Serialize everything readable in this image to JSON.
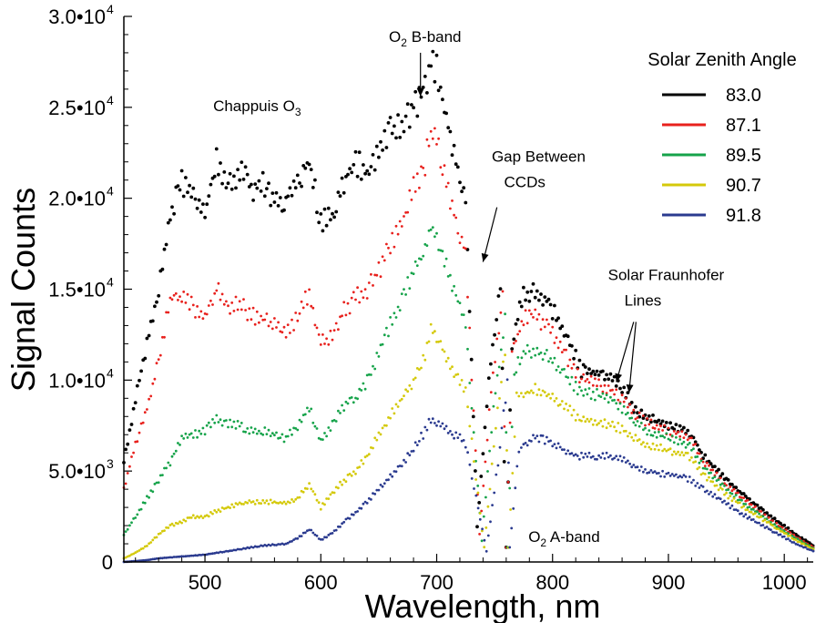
{
  "chart_data": {
    "type": "scatter",
    "title": "",
    "xlabel": "Wavelength, nm",
    "ylabel": "Signal Counts",
    "xlim": [
      430,
      1025
    ],
    "ylim": [
      0,
      30000
    ],
    "x_ticks": [
      500,
      600,
      700,
      800,
      900,
      1000
    ],
    "x_tick_labels": [
      "500",
      "600",
      "700",
      "800",
      "900",
      "1000"
    ],
    "y_ticks": [
      0,
      5000,
      10000,
      15000,
      20000,
      25000,
      30000
    ],
    "y_tick_labels": [
      "0",
      "5.0•10",
      "1.0•10",
      "1.5•10",
      "2.0•10",
      "2.5•10",
      "3.0•10"
    ],
    "y_tick_exponents": [
      "",
      "3",
      "4",
      "4",
      "4",
      "4",
      "4"
    ],
    "grid": false,
    "legend": {
      "title": "Solar Zenith Angle",
      "position": "top-right",
      "entries": [
        "83.0",
        "87.1",
        "89.5",
        "90.7",
        "91.8"
      ]
    },
    "series": [
      {
        "name": "83.0",
        "color": "#000000",
        "points": [
          [
            430,
            5500
          ],
          [
            440,
            9000
          ],
          [
            450,
            12000
          ],
          [
            460,
            15000
          ],
          [
            470,
            19000
          ],
          [
            480,
            21000
          ],
          [
            490,
            20000
          ],
          [
            500,
            19200
          ],
          [
            510,
            22000
          ],
          [
            520,
            20500
          ],
          [
            530,
            21500
          ],
          [
            540,
            20500
          ],
          [
            550,
            21000
          ],
          [
            560,
            19800
          ],
          [
            570,
            20000
          ],
          [
            580,
            21000
          ],
          [
            590,
            22000
          ],
          [
            600,
            18700
          ],
          [
            610,
            19000
          ],
          [
            620,
            21000
          ],
          [
            630,
            22000
          ],
          [
            640,
            21300
          ],
          [
            650,
            22500
          ],
          [
            660,
            23800
          ],
          [
            670,
            24000
          ],
          [
            680,
            25000
          ],
          [
            690,
            26200
          ],
          [
            695,
            27500
          ],
          [
            700,
            27000
          ],
          [
            710,
            24000
          ],
          [
            720,
            21000
          ],
          [
            725,
            20000
          ],
          [
            735,
            2000
          ],
          [
            745,
            10000
          ],
          [
            755,
            15500
          ],
          [
            760,
            800
          ],
          [
            765,
            12000
          ],
          [
            775,
            14800
          ],
          [
            785,
            14800
          ],
          [
            795,
            14500
          ],
          [
            805,
            13200
          ],
          [
            815,
            12000
          ],
          [
            825,
            10500
          ],
          [
            840,
            10400
          ],
          [
            850,
            10200
          ],
          [
            860,
            9500
          ],
          [
            870,
            8500
          ],
          [
            880,
            8000
          ],
          [
            890,
            7800
          ],
          [
            900,
            7500
          ],
          [
            910,
            7400
          ],
          [
            920,
            7000
          ],
          [
            930,
            5800
          ],
          [
            950,
            4500
          ],
          [
            970,
            3400
          ],
          [
            990,
            2400
          ],
          [
            1010,
            1500
          ],
          [
            1025,
            900
          ]
        ]
      },
      {
        "name": "87.1",
        "color": "#e8211d",
        "points": [
          [
            430,
            4000
          ],
          [
            440,
            6500
          ],
          [
            450,
            8500
          ],
          [
            460,
            11000
          ],
          [
            470,
            14500
          ],
          [
            480,
            14500
          ],
          [
            490,
            14000
          ],
          [
            500,
            13500
          ],
          [
            510,
            15000
          ],
          [
            520,
            14000
          ],
          [
            530,
            14200
          ],
          [
            540,
            13500
          ],
          [
            550,
            13500
          ],
          [
            560,
            13000
          ],
          [
            570,
            12500
          ],
          [
            580,
            13500
          ],
          [
            590,
            14800
          ],
          [
            600,
            12000
          ],
          [
            610,
            12500
          ],
          [
            620,
            13800
          ],
          [
            630,
            14500
          ],
          [
            640,
            15000
          ],
          [
            650,
            16000
          ],
          [
            660,
            17500
          ],
          [
            670,
            18500
          ],
          [
            680,
            20500
          ],
          [
            690,
            22000
          ],
          [
            695,
            23500
          ],
          [
            700,
            23000
          ],
          [
            710,
            20500
          ],
          [
            720,
            18000
          ],
          [
            725,
            17000
          ],
          [
            737,
            1500
          ],
          [
            747,
            9500
          ],
          [
            757,
            14500
          ],
          [
            760,
            800
          ],
          [
            765,
            11500
          ],
          [
            775,
            13500
          ],
          [
            785,
            13500
          ],
          [
            795,
            13000
          ],
          [
            805,
            12000
          ],
          [
            815,
            11000
          ],
          [
            825,
            10000
          ],
          [
            840,
            9800
          ],
          [
            850,
            9500
          ],
          [
            860,
            9000
          ],
          [
            870,
            8200
          ],
          [
            880,
            7700
          ],
          [
            890,
            7500
          ],
          [
            900,
            7200
          ],
          [
            910,
            7000
          ],
          [
            920,
            6700
          ],
          [
            930,
            5500
          ],
          [
            950,
            4200
          ],
          [
            970,
            3200
          ],
          [
            990,
            2200
          ],
          [
            1010,
            1400
          ],
          [
            1025,
            800
          ]
        ]
      },
      {
        "name": "89.5",
        "color": "#16a34a",
        "points": [
          [
            430,
            1500
          ],
          [
            440,
            2500
          ],
          [
            450,
            3500
          ],
          [
            460,
            4500
          ],
          [
            470,
            5500
          ],
          [
            480,
            6800
          ],
          [
            490,
            7000
          ],
          [
            500,
            7200
          ],
          [
            510,
            7800
          ],
          [
            520,
            7600
          ],
          [
            530,
            7500
          ],
          [
            540,
            7200
          ],
          [
            550,
            7200
          ],
          [
            560,
            7000
          ],
          [
            570,
            6800
          ],
          [
            580,
            7500
          ],
          [
            590,
            8500
          ],
          [
            600,
            6700
          ],
          [
            610,
            7500
          ],
          [
            620,
            8600
          ],
          [
            630,
            9000
          ],
          [
            640,
            10000
          ],
          [
            650,
            11500
          ],
          [
            660,
            13000
          ],
          [
            670,
            14500
          ],
          [
            680,
            16000
          ],
          [
            690,
            17000
          ],
          [
            695,
            18300
          ],
          [
            700,
            18000
          ],
          [
            710,
            16000
          ],
          [
            720,
            14000
          ],
          [
            725,
            13000
          ],
          [
            739,
            1200
          ],
          [
            749,
            8500
          ],
          [
            759,
            13200
          ],
          [
            761,
            800
          ],
          [
            767,
            10500
          ],
          [
            775,
            11500
          ],
          [
            785,
            11600
          ],
          [
            795,
            11300
          ],
          [
            805,
            10700
          ],
          [
            815,
            10000
          ],
          [
            825,
            9300
          ],
          [
            840,
            9200
          ],
          [
            850,
            9000
          ],
          [
            860,
            8500
          ],
          [
            870,
            7800
          ],
          [
            880,
            7300
          ],
          [
            890,
            7000
          ],
          [
            900,
            6800
          ],
          [
            910,
            6600
          ],
          [
            920,
            6300
          ],
          [
            930,
            5200
          ],
          [
            950,
            4000
          ],
          [
            970,
            3000
          ],
          [
            990,
            2100
          ],
          [
            1010,
            1300
          ],
          [
            1025,
            750
          ]
        ]
      },
      {
        "name": "90.7",
        "color": "#d4c90a",
        "points": [
          [
            430,
            200
          ],
          [
            440,
            500
          ],
          [
            450,
            900
          ],
          [
            460,
            1500
          ],
          [
            470,
            2000
          ],
          [
            480,
            2200
          ],
          [
            490,
            2500
          ],
          [
            500,
            2500
          ],
          [
            510,
            2800
          ],
          [
            520,
            3000
          ],
          [
            530,
            3200
          ],
          [
            540,
            3300
          ],
          [
            550,
            3300
          ],
          [
            560,
            3300
          ],
          [
            570,
            3200
          ],
          [
            580,
            3500
          ],
          [
            590,
            4300
          ],
          [
            600,
            3000
          ],
          [
            610,
            3800
          ],
          [
            620,
            4500
          ],
          [
            630,
            5000
          ],
          [
            640,
            5800
          ],
          [
            650,
            7000
          ],
          [
            660,
            8000
          ],
          [
            670,
            9000
          ],
          [
            680,
            10000
          ],
          [
            690,
            11500
          ],
          [
            695,
            12800
          ],
          [
            700,
            12500
          ],
          [
            710,
            11000
          ],
          [
            720,
            10000
          ],
          [
            725,
            9500
          ],
          [
            741,
            800
          ],
          [
            751,
            7500
          ],
          [
            759,
            11500
          ],
          [
            762,
            800
          ],
          [
            769,
            9000
          ],
          [
            775,
            9200
          ],
          [
            785,
            9500
          ],
          [
            795,
            9300
          ],
          [
            805,
            8700
          ],
          [
            815,
            8300
          ],
          [
            825,
            7800
          ],
          [
            840,
            7700
          ],
          [
            850,
            7600
          ],
          [
            860,
            7300
          ],
          [
            870,
            6900
          ],
          [
            880,
            6500
          ],
          [
            890,
            6300
          ],
          [
            900,
            6100
          ],
          [
            910,
            6000
          ],
          [
            920,
            5700
          ],
          [
            930,
            4800
          ],
          [
            950,
            3700
          ],
          [
            970,
            2800
          ],
          [
            990,
            2000
          ],
          [
            1010,
            1200
          ],
          [
            1025,
            700
          ]
        ]
      },
      {
        "name": "91.8",
        "color": "#2a3a8f",
        "points": [
          [
            430,
            0
          ],
          [
            440,
            50
          ],
          [
            450,
            100
          ],
          [
            460,
            200
          ],
          [
            470,
            250
          ],
          [
            480,
            300
          ],
          [
            490,
            350
          ],
          [
            500,
            400
          ],
          [
            510,
            500
          ],
          [
            520,
            600
          ],
          [
            530,
            700
          ],
          [
            540,
            800
          ],
          [
            550,
            900
          ],
          [
            560,
            950
          ],
          [
            570,
            1000
          ],
          [
            580,
            1300
          ],
          [
            590,
            1800
          ],
          [
            600,
            1200
          ],
          [
            610,
            1600
          ],
          [
            620,
            2200
          ],
          [
            630,
            2700
          ],
          [
            640,
            3300
          ],
          [
            650,
            4000
          ],
          [
            660,
            4700
          ],
          [
            670,
            5400
          ],
          [
            680,
            6200
          ],
          [
            690,
            7200
          ],
          [
            695,
            7800
          ],
          [
            700,
            7600
          ],
          [
            710,
            7200
          ],
          [
            720,
            6800
          ],
          [
            725,
            6500
          ],
          [
            743,
            600
          ],
          [
            753,
            5500
          ],
          [
            761,
            9800
          ],
          [
            763,
            800
          ],
          [
            771,
            6200
          ],
          [
            775,
            6400
          ],
          [
            785,
            6900
          ],
          [
            795,
            6700
          ],
          [
            805,
            6300
          ],
          [
            815,
            6000
          ],
          [
            825,
            5800
          ],
          [
            840,
            5800
          ],
          [
            850,
            5800
          ],
          [
            860,
            5600
          ],
          [
            870,
            5300
          ],
          [
            880,
            5000
          ],
          [
            890,
            4900
          ],
          [
            900,
            4800
          ],
          [
            910,
            4700
          ],
          [
            920,
            4500
          ],
          [
            930,
            4000
          ],
          [
            950,
            3200
          ],
          [
            970,
            2400
          ],
          [
            990,
            1700
          ],
          [
            1010,
            1000
          ],
          [
            1025,
            600
          ]
        ]
      }
    ],
    "annotations": [
      {
        "text": "Chappuis O",
        "sub": "3",
        "x": 545,
        "y": 24800
      },
      {
        "text": "O",
        "sub": "2",
        "rest": " B-band",
        "x": 690,
        "y": 28600
      },
      {
        "text": "Gap Between",
        "x": 788,
        "y": 22000
      },
      {
        "text": "CCDs",
        "x": 776,
        "y": 20600
      },
      {
        "text": "O",
        "sub": "2",
        "rest": " A-band",
        "x": 810,
        "y": 1100
      },
      {
        "text": "Solar Fraunhofer",
        "x": 898,
        "y": 15500
      },
      {
        "text": "Lines",
        "x": 878,
        "y": 14100
      }
    ]
  }
}
